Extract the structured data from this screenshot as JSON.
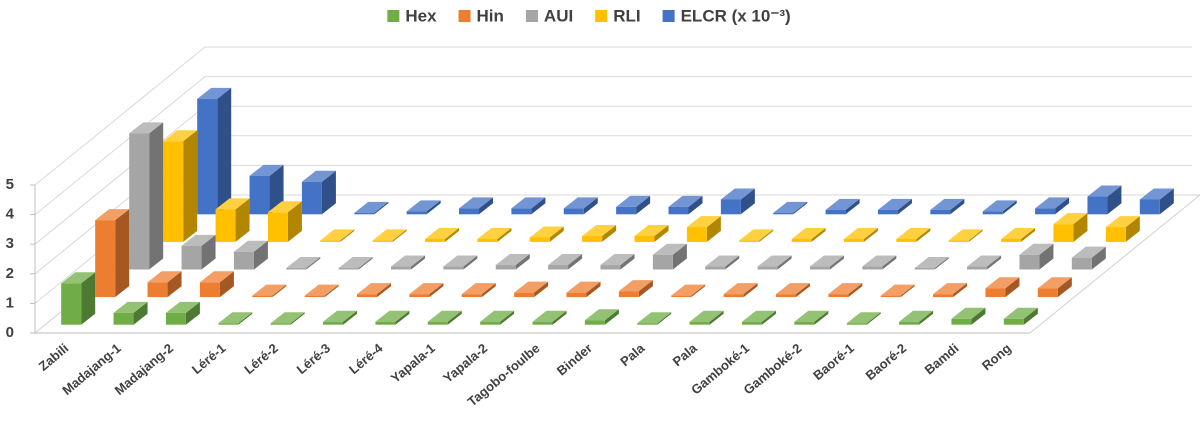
{
  "chart_data": {
    "type": "bar3d",
    "categories": [
      "Zabili",
      "Madajang-1",
      "Madajang-2",
      "Léré-1",
      "Léré-2",
      "Léré-3",
      "Léré-4",
      "Yapala-1",
      "Yapala-2",
      "Tagobo-foulbe",
      "Binder",
      "Pala",
      "Pala",
      "Gamboké-1",
      "Gamboké-2",
      "Baoré-1",
      "Baoré-2",
      "Bamdi",
      "Rong"
    ],
    "series": [
      {
        "name": "Hex",
        "color": "#70ad47",
        "values": [
          1.4,
          0.4,
          0.4,
          0.05,
          0.05,
          0.1,
          0.1,
          0.1,
          0.1,
          0.1,
          0.15,
          0.05,
          0.1,
          0.1,
          0.1,
          0.05,
          0.1,
          0.2,
          0.2
        ]
      },
      {
        "name": "Hin",
        "color": "#ed7d31",
        "values": [
          2.6,
          0.5,
          0.5,
          0.05,
          0.05,
          0.1,
          0.1,
          0.1,
          0.15,
          0.15,
          0.2,
          0.05,
          0.1,
          0.1,
          0.1,
          0.05,
          0.1,
          0.3,
          0.3
        ]
      },
      {
        "name": "AUI",
        "color": "#a5a5a5",
        "values": [
          4.6,
          0.8,
          0.6,
          0.05,
          0.05,
          0.1,
          0.1,
          0.15,
          0.15,
          0.15,
          0.5,
          0.1,
          0.1,
          0.1,
          0.1,
          0.05,
          0.1,
          0.5,
          0.4
        ]
      },
      {
        "name": "RLI",
        "color": "#ffc000",
        "values": [
          3.4,
          1.1,
          1.0,
          0.05,
          0.05,
          0.1,
          0.1,
          0.15,
          0.2,
          0.2,
          0.5,
          0.05,
          0.1,
          0.1,
          0.1,
          0.05,
          0.1,
          0.6,
          0.5
        ]
      },
      {
        "name": "ELCR (x 10⁻³)",
        "color": "#4472c4",
        "values": [
          3.9,
          1.3,
          1.1,
          0.05,
          0.1,
          0.2,
          0.2,
          0.2,
          0.25,
          0.25,
          0.5,
          0.05,
          0.15,
          0.15,
          0.15,
          0.1,
          0.2,
          0.6,
          0.5
        ]
      }
    ],
    "ylim": [
      0,
      5
    ],
    "yticks": [
      0,
      1,
      2,
      3,
      4,
      5
    ],
    "grid": true,
    "legend": "top"
  }
}
